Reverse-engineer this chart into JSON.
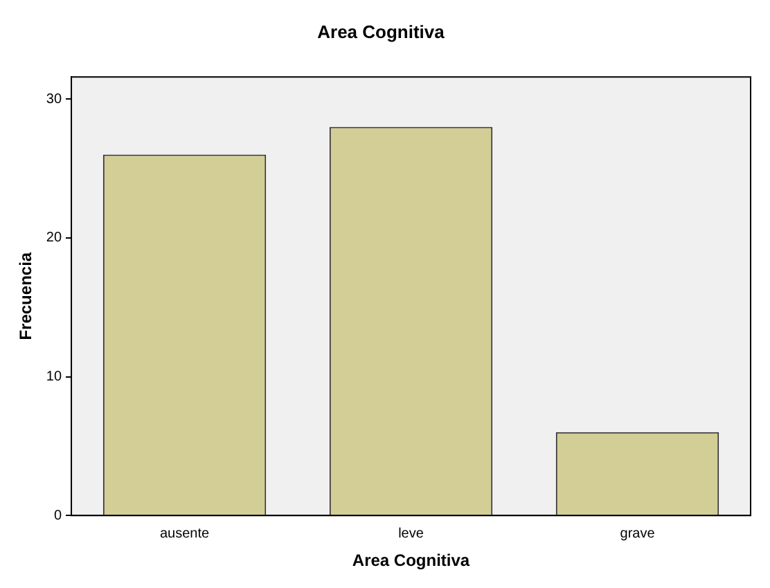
{
  "chart_data": {
    "type": "bar",
    "title": "Area Cognitiva",
    "xlabel": "Area Cognitiva",
    "ylabel": "Frecuencia",
    "categories": [
      "ausente",
      "leve",
      "grave"
    ],
    "values": [
      26,
      28,
      6
    ],
    "color": "#d3ce96",
    "ylim": [
      0,
      31.6
    ],
    "yticks": [
      0,
      10,
      20,
      30
    ],
    "grid": false,
    "legend": false
  }
}
